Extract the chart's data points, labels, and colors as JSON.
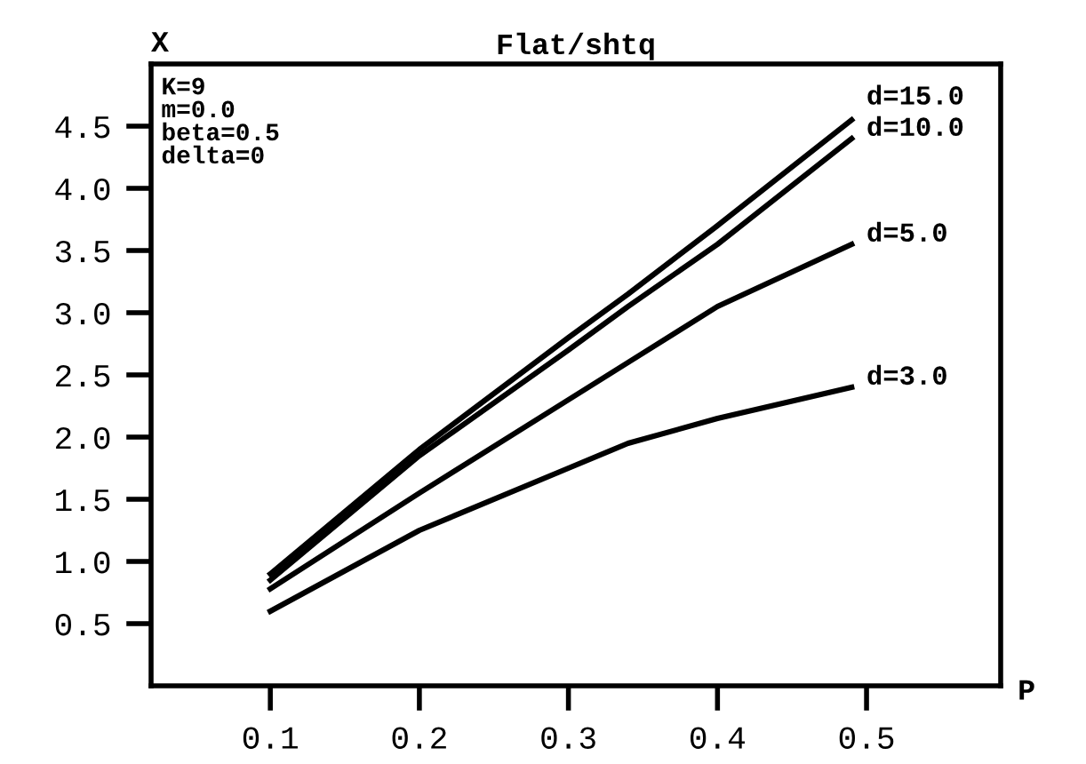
{
  "chart_data": {
    "type": "line",
    "title": "Flat/shtq",
    "xlabel": "P",
    "ylabel": "X",
    "annotations": [
      "K=9",
      "m=0.0",
      "beta=0.5",
      "delta=0"
    ],
    "x": [
      0.1,
      0.2,
      0.3,
      0.34,
      0.4,
      0.49
    ],
    "series": [
      {
        "name": "d=15.0",
        "color": "#000000",
        "values": [
          0.9,
          1.9,
          2.8,
          3.15,
          3.7,
          4.55
        ]
      },
      {
        "name": "d=10.0",
        "color": "#000000",
        "values": [
          0.85,
          1.85,
          2.7,
          3.05,
          3.55,
          4.4
        ]
      },
      {
        "name": "d=5.0",
        "color": "#000000",
        "values": [
          0.78,
          1.55,
          2.3,
          2.6,
          3.05,
          3.55
        ]
      },
      {
        "name": "d=3.0",
        "color": "#000000",
        "values": [
          0.6,
          1.25,
          1.75,
          1.95,
          2.15,
          2.4
        ]
      }
    ],
    "xlim": [
      0.02,
      0.59
    ],
    "ylim": [
      0,
      5.0
    ],
    "xticks": [
      0.1,
      0.2,
      0.3,
      0.4,
      0.5
    ],
    "yticks": [
      0.5,
      {
        "value": 1,
        "label": "1.0"
      },
      1.5,
      {
        "value": 2,
        "label": "2.0"
      },
      2.5,
      {
        "value": 3,
        "label": "3.0"
      },
      3.5,
      {
        "value": 4,
        "label": "4.0"
      },
      4.5
    ],
    "grid": false,
    "legend": false,
    "marker": "none",
    "line_style": "solid"
  }
}
